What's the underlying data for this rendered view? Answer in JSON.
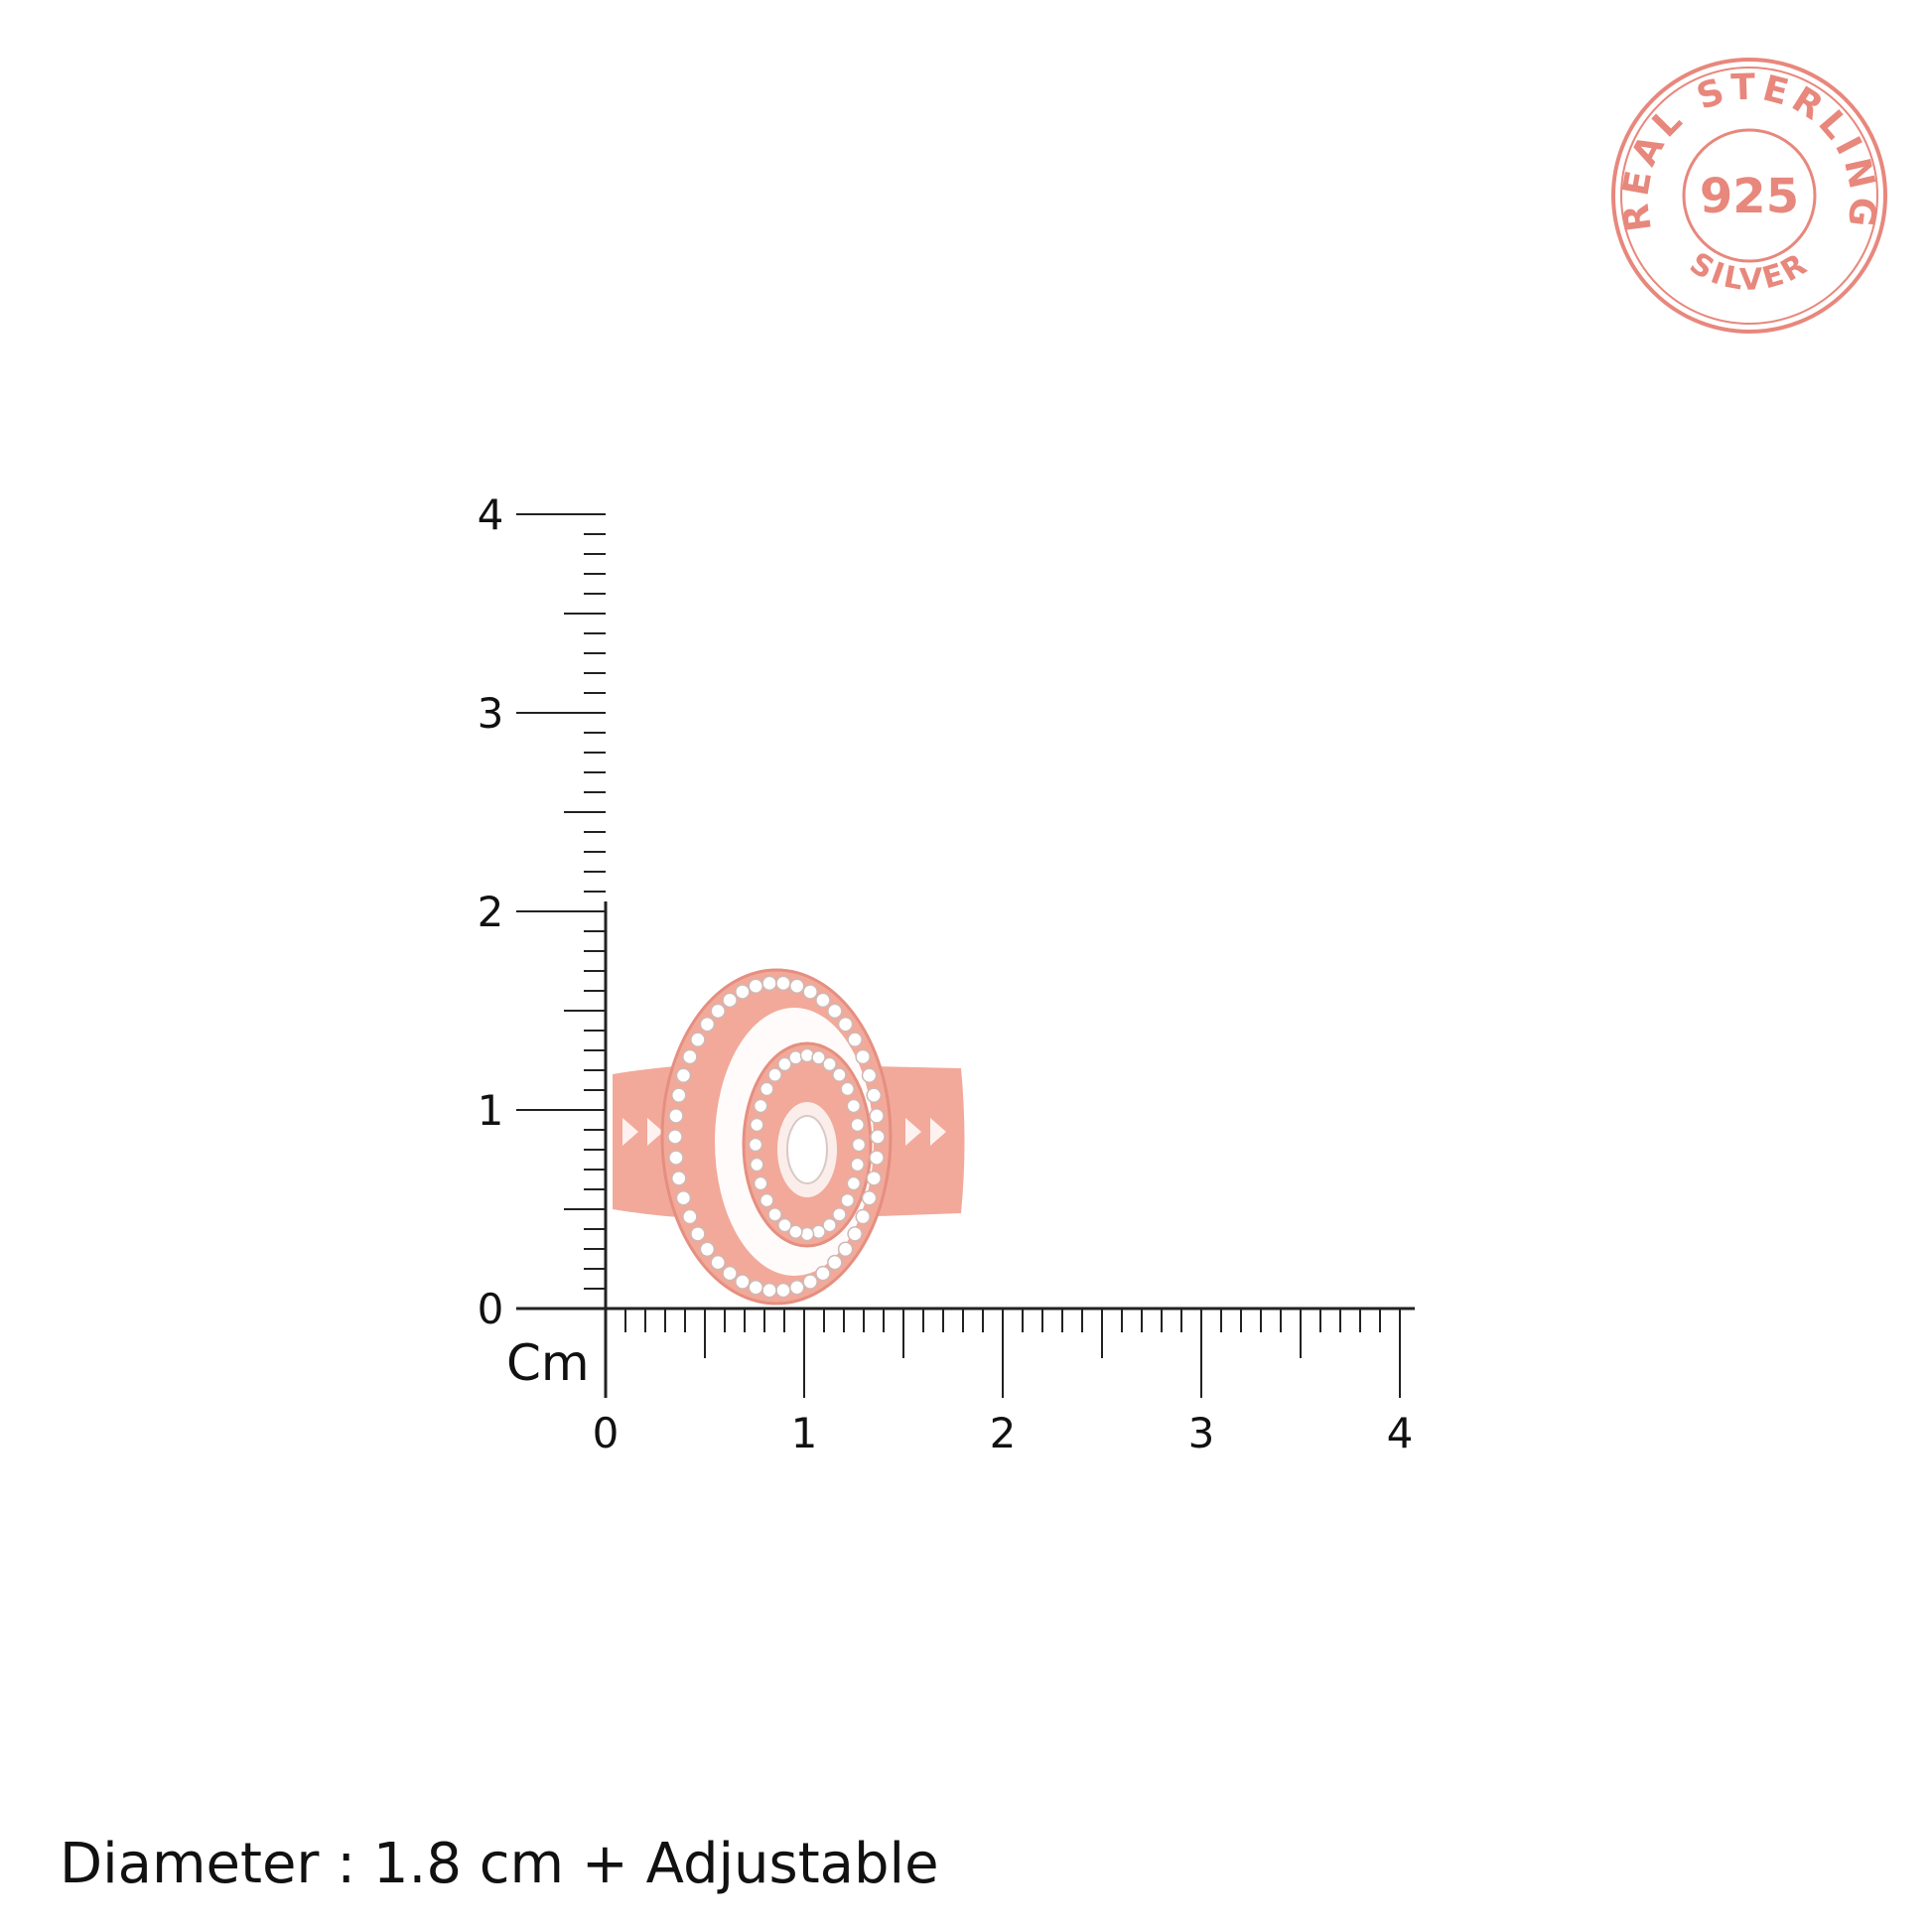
{
  "stamp": {
    "top_text": "REAL STERLING",
    "center_text": "925",
    "bottom_text": "SILVER",
    "color": "#e8877c"
  },
  "ruler": {
    "unit_label": "Cm",
    "x_ticks": [
      "0",
      "1",
      "2",
      "3",
      "4"
    ],
    "y_ticks": [
      "0",
      "1",
      "2",
      "3",
      "4"
    ],
    "range_cm": [
      0,
      4
    ],
    "minor_step_cm": 0.1
  },
  "product": {
    "metal_color": "#f2a99a",
    "metal_shadow": "#e58f80",
    "stone_color": "#ffffff"
  },
  "caption": "Diameter : 1.8 cm + Adjustable"
}
